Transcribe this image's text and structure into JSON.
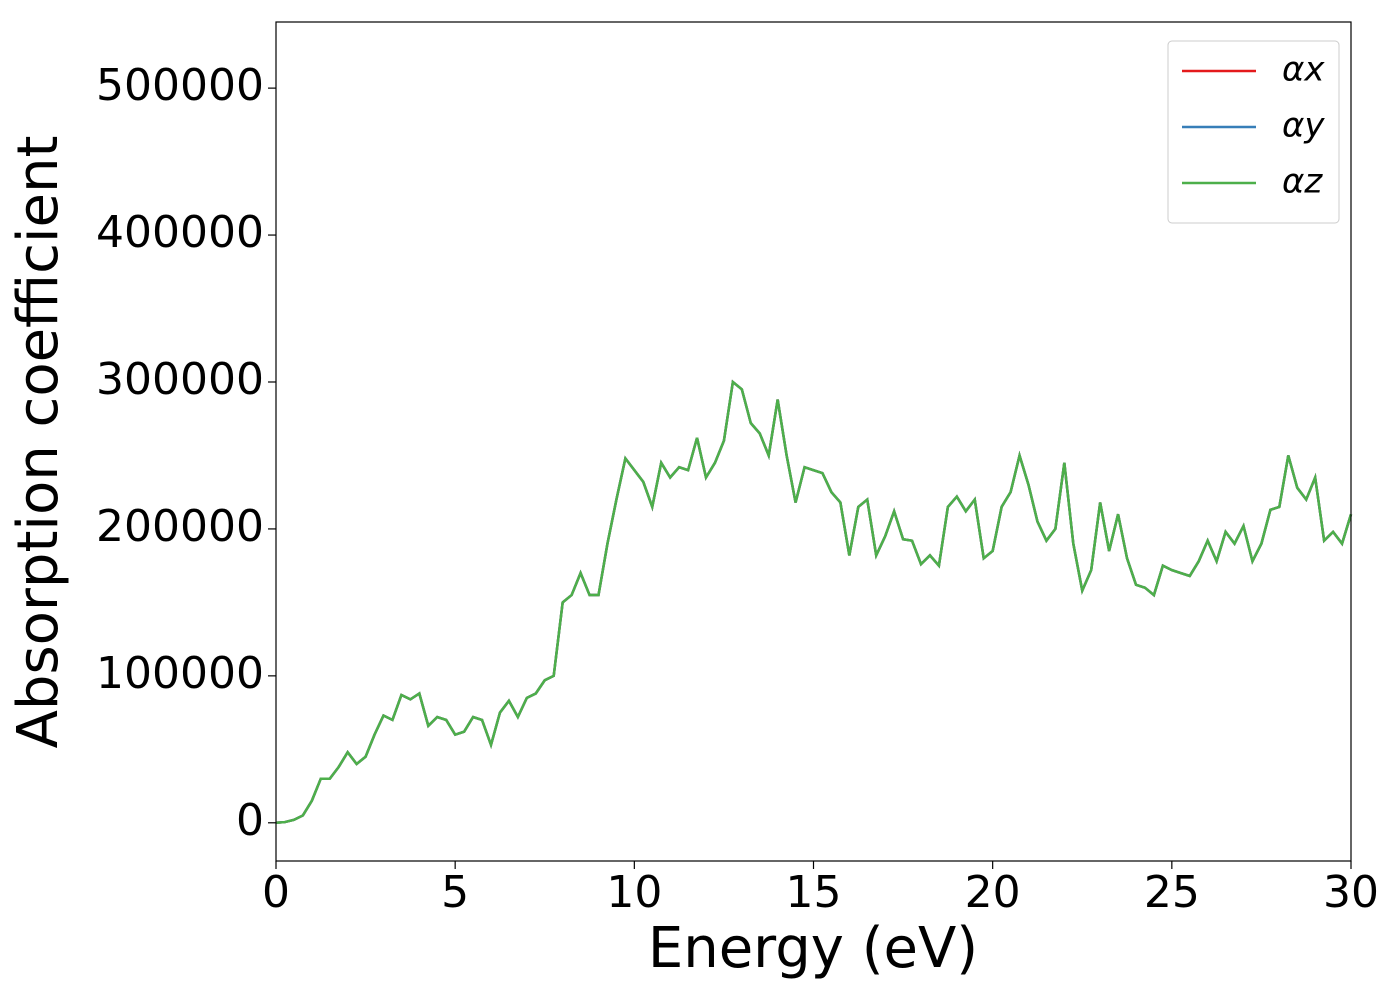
{
  "chart_data": {
    "type": "line",
    "xlabel": "Energy (eV)",
    "ylabel": "Absorption coefficient",
    "x": [
      0,
      0.25,
      0.5,
      0.75,
      1,
      1.25,
      1.5,
      1.75,
      2,
      2.25,
      2.5,
      2.75,
      3,
      3.25,
      3.5,
      3.75,
      4,
      4.25,
      4.5,
      4.75,
      5,
      5.25,
      5.5,
      5.75,
      6,
      6.25,
      6.5,
      6.75,
      7,
      7.25,
      7.5,
      7.75,
      8,
      8.25,
      8.5,
      8.75,
      9,
      9.25,
      9.5,
      9.75,
      10,
      10.25,
      10.5,
      10.75,
      11,
      11.25,
      11.5,
      11.75,
      12,
      12.25,
      12.5,
      12.75,
      13,
      13.25,
      13.5,
      13.75,
      14,
      14.25,
      14.5,
      14.75,
      15,
      15.25,
      15.5,
      15.75,
      16,
      16.25,
      16.5,
      16.75,
      17,
      17.25,
      17.5,
      17.75,
      18,
      18.25,
      18.5,
      18.75,
      19,
      19.25,
      19.5,
      19.75,
      20,
      20.25,
      20.5,
      20.75,
      21,
      21.25,
      21.5,
      21.75,
      22,
      22.25,
      22.5,
      22.75,
      23,
      23.25,
      23.5,
      23.75,
      24,
      24.25,
      24.5,
      24.75,
      25,
      25.25,
      25.5,
      25.75,
      26,
      26.25,
      26.5,
      26.75,
      27,
      27.25,
      27.5,
      27.75,
      28,
      28.25,
      28.5,
      28.75,
      29,
      29.25,
      29.5,
      29.75,
      30
    ],
    "series": [
      {
        "name": "αx",
        "color": "#e41a1c",
        "values": [
          0,
          500,
          2000,
          5000,
          15000,
          30000,
          30000,
          38000,
          48000,
          40000,
          45000,
          60000,
          73000,
          70000,
          87000,
          84000,
          88000,
          66000,
          72000,
          70000,
          60000,
          62000,
          72000,
          70000,
          53000,
          75000,
          83000,
          72000,
          85000,
          88000,
          97000,
          100000,
          150000,
          155000,
          170000,
          155000,
          155000,
          190000,
          220000,
          248000,
          240000,
          232000,
          215000,
          245000,
          235000,
          242000,
          240000,
          262000,
          235000,
          245000,
          260000,
          300000,
          295000,
          272000,
          265000,
          250000,
          288000,
          250000,
          218000,
          242000,
          240000,
          238000,
          225000,
          218000,
          182000,
          215000,
          220000,
          182000,
          195000,
          212000,
          193000,
          192000,
          176000,
          182000,
          175000,
          215000,
          222000,
          212000,
          220000,
          180000,
          185000,
          215000,
          225000,
          250000,
          230000,
          205000,
          192000,
          200000,
          245000,
          190000,
          158000,
          172000,
          218000,
          185000,
          210000,
          180000,
          162000,
          160000,
          155000,
          175000,
          172000,
          170000,
          168000,
          178000,
          192000,
          178000,
          198000,
          190000,
          202000,
          178000,
          190000,
          213000,
          215000,
          250000,
          228000,
          220000,
          235000,
          192000,
          198000,
          190000,
          210000
        ]
      },
      {
        "name": "αy",
        "color": "#377eb8",
        "values": [
          0,
          500,
          2000,
          5000,
          15000,
          30000,
          30000,
          38000,
          48000,
          40000,
          45000,
          60000,
          73000,
          70000,
          87000,
          84000,
          88000,
          66000,
          72000,
          70000,
          60000,
          62000,
          72000,
          70000,
          53000,
          75000,
          83000,
          72000,
          85000,
          88000,
          97000,
          100000,
          150000,
          155000,
          170000,
          155000,
          155000,
          190000,
          220000,
          248000,
          240000,
          232000,
          215000,
          245000,
          235000,
          242000,
          240000,
          262000,
          235000,
          245000,
          260000,
          300000,
          295000,
          272000,
          265000,
          250000,
          288000,
          250000,
          218000,
          242000,
          240000,
          238000,
          225000,
          218000,
          182000,
          215000,
          220000,
          182000,
          195000,
          212000,
          193000,
          192000,
          176000,
          182000,
          175000,
          215000,
          222000,
          212000,
          220000,
          180000,
          185000,
          215000,
          225000,
          250000,
          230000,
          205000,
          192000,
          200000,
          245000,
          190000,
          158000,
          172000,
          218000,
          185000,
          210000,
          180000,
          162000,
          160000,
          155000,
          175000,
          172000,
          170000,
          168000,
          178000,
          192000,
          178000,
          198000,
          190000,
          202000,
          178000,
          190000,
          213000,
          215000,
          250000,
          228000,
          220000,
          235000,
          192000,
          198000,
          190000,
          210000
        ]
      },
      {
        "name": "αz",
        "color": "#4daf4a",
        "values": [
          0,
          500,
          2000,
          5000,
          15000,
          30000,
          30000,
          38000,
          48000,
          40000,
          45000,
          60000,
          73000,
          70000,
          87000,
          84000,
          88000,
          66000,
          72000,
          70000,
          60000,
          62000,
          72000,
          70000,
          53000,
          75000,
          83000,
          72000,
          85000,
          88000,
          97000,
          100000,
          150000,
          155000,
          170000,
          155000,
          155000,
          190000,
          220000,
          248000,
          240000,
          232000,
          215000,
          245000,
          235000,
          242000,
          240000,
          262000,
          235000,
          245000,
          260000,
          300000,
          295000,
          272000,
          265000,
          250000,
          288000,
          250000,
          218000,
          242000,
          240000,
          238000,
          225000,
          218000,
          182000,
          215000,
          220000,
          182000,
          195000,
          212000,
          193000,
          192000,
          176000,
          182000,
          175000,
          215000,
          222000,
          212000,
          220000,
          180000,
          185000,
          215000,
          225000,
          250000,
          230000,
          205000,
          192000,
          200000,
          245000,
          190000,
          158000,
          172000,
          218000,
          185000,
          210000,
          180000,
          162000,
          160000,
          155000,
          175000,
          172000,
          170000,
          168000,
          178000,
          192000,
          178000,
          198000,
          190000,
          202000,
          178000,
          190000,
          213000,
          215000,
          250000,
          228000,
          220000,
          235000,
          192000,
          198000,
          190000,
          210000
        ]
      }
    ],
    "xlim": [
      0,
      30
    ],
    "xticks": [
      0,
      5,
      10,
      15,
      20,
      25,
      30
    ],
    "ylim": [
      -26000,
      545000
    ],
    "yticks": [
      0,
      100000,
      200000,
      300000,
      400000,
      500000
    ],
    "grid": false,
    "legend": "upper right"
  }
}
